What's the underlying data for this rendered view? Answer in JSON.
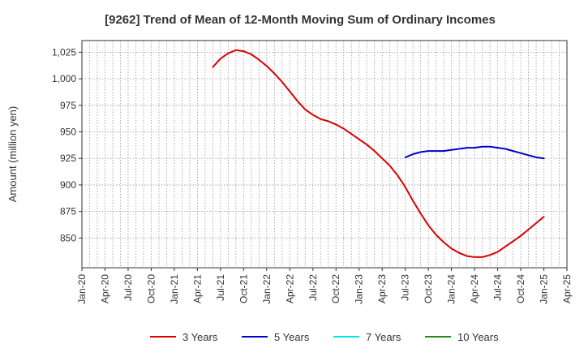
{
  "chart_data": {
    "type": "line",
    "title": "[9262]  Trend of Mean of 12-Month Moving Sum of Ordinary Incomes",
    "xlabel": "",
    "ylabel": "Amount (million yen)",
    "ylim": [
      822,
      1036
    ],
    "yticks": [
      850,
      875,
      900,
      925,
      950,
      975,
      1000,
      1025
    ],
    "ytick_labels": [
      "850",
      "875",
      "900",
      "925",
      "950",
      "975",
      "1,000",
      "1,025"
    ],
    "x_tick_labels": [
      "Jan-20",
      "Apr-20",
      "Jul-20",
      "Oct-20",
      "Jan-21",
      "Apr-21",
      "Jul-21",
      "Oct-21",
      "Jan-22",
      "Apr-22",
      "Jul-22",
      "Oct-22",
      "Jan-23",
      "Apr-23",
      "Jul-23",
      "Oct-23",
      "Jan-24",
      "Apr-24",
      "Jul-24",
      "Oct-24",
      "Jan-25",
      "Apr-25"
    ],
    "x_tick_months": [
      0,
      3,
      6,
      9,
      12,
      15,
      18,
      21,
      24,
      27,
      30,
      33,
      36,
      39,
      42,
      45,
      48,
      51,
      54,
      57,
      60,
      63
    ],
    "grid": true,
    "legend_position": "bottom",
    "series": [
      {
        "name": "3 Years",
        "color": "#dd0000",
        "x_months": [
          17,
          18,
          19,
          20,
          21,
          22,
          23,
          24,
          25,
          26,
          27,
          28,
          29,
          30,
          31,
          32,
          33,
          34,
          35,
          36,
          37,
          38,
          39,
          40,
          41,
          42,
          43,
          44,
          45,
          46,
          47,
          48,
          49,
          50,
          51,
          52,
          53,
          54,
          55,
          56,
          57,
          58,
          59,
          60
        ],
        "values": [
          1011,
          1019,
          1024,
          1027,
          1026,
          1023,
          1018,
          1012,
          1005,
          997,
          988,
          979,
          971,
          966,
          962,
          960,
          957,
          953,
          948,
          943,
          938,
          932,
          925,
          918,
          909,
          898,
          885,
          873,
          862,
          853,
          846,
          840,
          836,
          833,
          832,
          832,
          834,
          837,
          842,
          847,
          852,
          858,
          864,
          870
        ]
      },
      {
        "name": "5 Years",
        "color": "#0000cc",
        "x_months": [
          42,
          43,
          44,
          45,
          46,
          47,
          48,
          49,
          50,
          51,
          52,
          53,
          54,
          55,
          56,
          57,
          58,
          59,
          60
        ],
        "values": [
          926,
          929,
          931,
          932,
          932,
          932,
          933,
          934,
          935,
          935,
          936,
          936,
          935,
          934,
          932,
          930,
          928,
          926,
          925
        ]
      },
      {
        "name": "7 Years",
        "color": "#00e5ee",
        "x_months": [],
        "values": []
      },
      {
        "name": "10 Years",
        "color": "#228b22",
        "x_months": [],
        "values": []
      }
    ]
  }
}
